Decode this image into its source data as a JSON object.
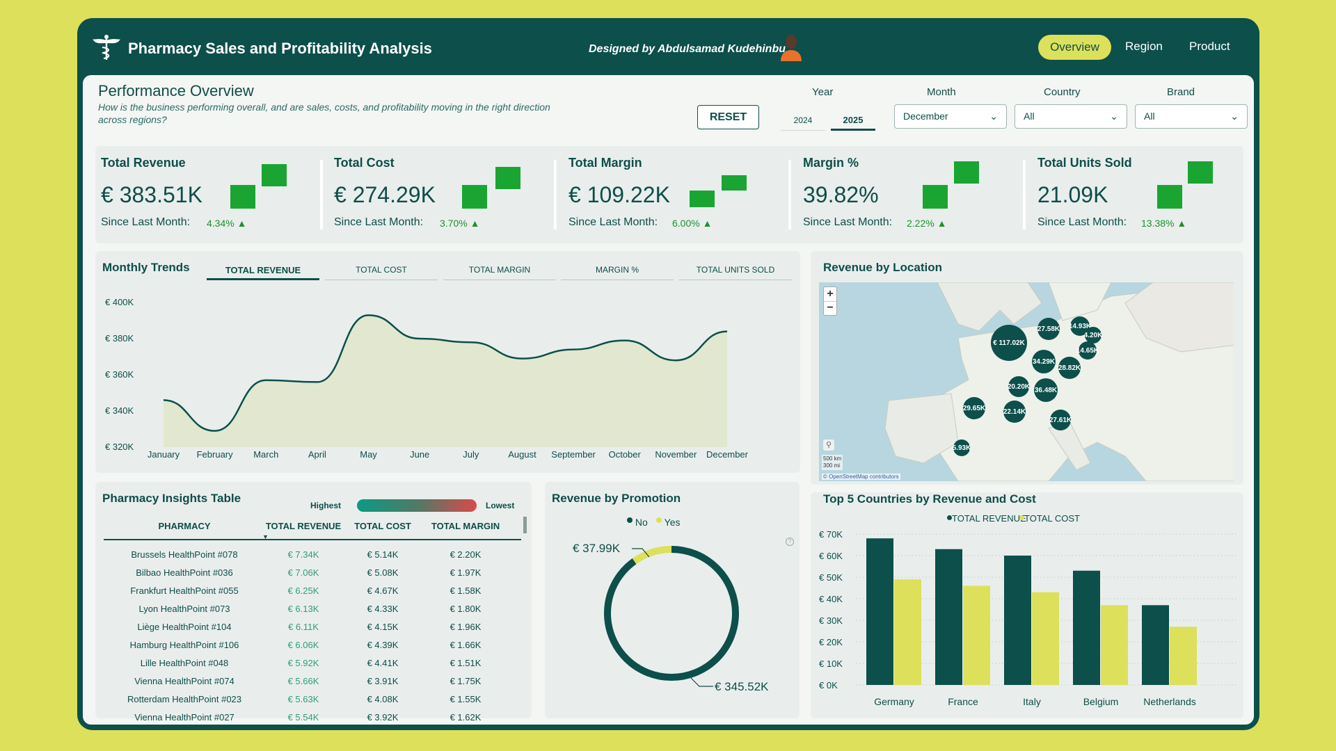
{
  "app": {
    "title": "Pharmacy Sales and Profitability Analysis",
    "designer": "Designed by Abdulsamad Kudehinbu",
    "nav": [
      "Overview",
      "Region",
      "Product"
    ]
  },
  "overview": {
    "title": "Performance Overview",
    "subtitle": "How is the business performing overall, and are sales, costs, and profitability moving in the right direction across regions?",
    "reset_label": "RESET"
  },
  "filters": {
    "year_label": "Year",
    "years": [
      "2024",
      "2025"
    ],
    "year_selected": "2025",
    "month_label": "Month",
    "month_value": "December",
    "country_label": "Country",
    "country_value": "All",
    "brand_label": "Brand",
    "brand_value": "All"
  },
  "kpis": [
    {
      "title": "Total Revenue",
      "value": "€ 383.51K",
      "since_label": "Since Last Month:",
      "change": "4.34%"
    },
    {
      "title": "Total Cost",
      "value": "€ 274.29K",
      "since_label": "Since Last Month:",
      "change": "3.70%"
    },
    {
      "title": "Total Margin",
      "value": "€ 109.22K",
      "since_label": "Since Last Month:",
      "change": "6.00%"
    },
    {
      "title": "Margin %",
      "value": "39.82%",
      "since_label": "Since Last Month:",
      "change": "2.22%"
    },
    {
      "title": "Total Units Sold",
      "value": "21.09K",
      "since_label": "Since Last Month:",
      "change": "13.38%"
    }
  ],
  "colors": {
    "dark_teal": "#0c4f4b",
    "accent_yellow": "#dde05a",
    "positive_green": "#1aa533",
    "panel_bg": "#e9eeec"
  },
  "trends": {
    "title": "Monthly Trends",
    "tabs": [
      "TOTAL REVENUE",
      "TOTAL COST",
      "TOTAL MARGIN",
      "MARGIN %",
      "TOTAL UNITS SOLD"
    ],
    "active_tab": "TOTAL REVENUE",
    "y_ticks": [
      "€ 400K",
      "€ 380K",
      "€ 360K",
      "€ 340K",
      "€ 320K"
    ]
  },
  "map": {
    "title": "Revenue by Location",
    "zoom_in": "+",
    "zoom_out": "−",
    "scale_km": "500 km",
    "scale_mi": "300 mi",
    "attribution": "© OpenStreetMap contributors",
    "bubbles": [
      "€ 117.02K",
      "27.58K",
      "14.93K",
      "4.20K",
      "14.65K",
      "34.29K",
      "28.82K",
      "20.20K",
      "36.48K",
      "29.65K",
      "22.14K",
      "27.61K",
      "5.93K"
    ]
  },
  "table": {
    "title": "Pharmacy Insights Table",
    "legend_high": "Highest",
    "legend_low": "Lowest",
    "columns": [
      "PHARMACY",
      "TOTAL REVENUE",
      "TOTAL COST",
      "TOTAL MARGIN"
    ],
    "rows": [
      [
        "Brussels HealthPoint #078",
        "€ 7.34K",
        "€ 5.14K",
        "€ 2.20K"
      ],
      [
        "Bilbao HealthPoint #036",
        "€ 7.06K",
        "€ 5.08K",
        "€ 1.97K"
      ],
      [
        "Frankfurt HealthPoint #055",
        "€ 6.25K",
        "€ 4.67K",
        "€ 1.58K"
      ],
      [
        "Lyon HealthPoint #073",
        "€ 6.13K",
        "€ 4.33K",
        "€ 1.80K"
      ],
      [
        "Liège HealthPoint #104",
        "€ 6.11K",
        "€ 4.15K",
        "€ 1.96K"
      ],
      [
        "Hamburg HealthPoint #106",
        "€ 6.06K",
        "€ 4.39K",
        "€ 1.66K"
      ],
      [
        "Lille HealthPoint #048",
        "€ 5.92K",
        "€ 4.41K",
        "€ 1.51K"
      ],
      [
        "Vienna HealthPoint #074",
        "€ 5.66K",
        "€ 3.91K",
        "€ 1.75K"
      ],
      [
        "Rotterdam HealthPoint #023",
        "€ 5.63K",
        "€ 4.08K",
        "€ 1.55K"
      ],
      [
        "Vienna HealthPoint #027",
        "€ 5.54K",
        "€ 3.92K",
        "€ 1.62K"
      ]
    ]
  },
  "chart_data": [
    {
      "type": "area",
      "title": "Monthly Trends",
      "x": [
        "January",
        "February",
        "March",
        "April",
        "May",
        "June",
        "July",
        "August",
        "September",
        "October",
        "November",
        "December"
      ],
      "series": [
        {
          "name": "TOTAL REVENUE",
          "values": [
            346,
            329,
            357,
            356,
            393,
            380,
            378,
            369,
            374,
            379,
            368,
            384
          ]
        }
      ],
      "ylim": [
        320,
        400
      ],
      "y_unit": "€ K",
      "grid": false
    },
    {
      "type": "pie",
      "title": "Revenue by Promotion",
      "categories": [
        "No",
        "Yes"
      ],
      "values": [
        345.52,
        37.99
      ],
      "labels": [
        "€ 345.52K",
        "€ 37.99K"
      ],
      "colors": [
        "#0c4f4b",
        "#dde05a"
      ],
      "donut": true
    },
    {
      "type": "bar",
      "title": "Top 5 Countries by Revenue and Cost",
      "categories": [
        "Germany",
        "France",
        "Italy",
        "Belgium",
        "Netherlands"
      ],
      "series": [
        {
          "name": "TOTAL REVENUE",
          "values": [
            68,
            63,
            60,
            53,
            37
          ],
          "color": "#0c4f4b"
        },
        {
          "name": "TOTAL COST",
          "values": [
            49,
            46,
            43,
            37,
            27
          ],
          "color": "#dde05a"
        }
      ],
      "y_ticks": [
        "€ 70K",
        "€ 60K",
        "€ 50K",
        "€ 40K",
        "€ 30K",
        "€ 20K",
        "€ 10K",
        "€ 0K"
      ],
      "ylim": [
        0,
        70
      ],
      "legend": "top"
    }
  ]
}
